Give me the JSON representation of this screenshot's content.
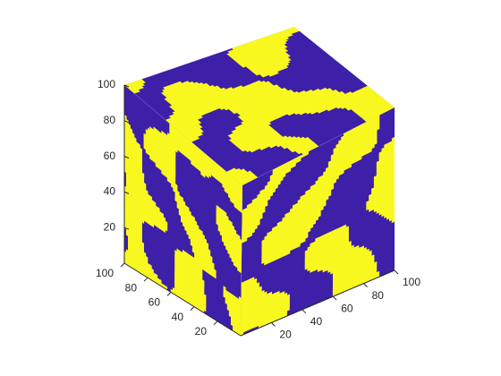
{
  "chart_data": {
    "type": "voxel-3d",
    "title": "",
    "xlabel": "",
    "ylabel": "",
    "zlabel": "",
    "x_range": [
      0,
      100
    ],
    "y_range": [
      0,
      100
    ],
    "z_range": [
      0,
      100
    ],
    "x_ticks": [
      20,
      40,
      60,
      80,
      100
    ],
    "y_ticks": [
      20,
      40,
      60,
      80,
      100
    ],
    "z_ticks": [
      20,
      40,
      60,
      80,
      100
    ],
    "phase_colors": [
      "#3d1fa8",
      "#f8f820"
    ],
    "background": "#ffffff",
    "grid": false,
    "legend": "none"
  }
}
